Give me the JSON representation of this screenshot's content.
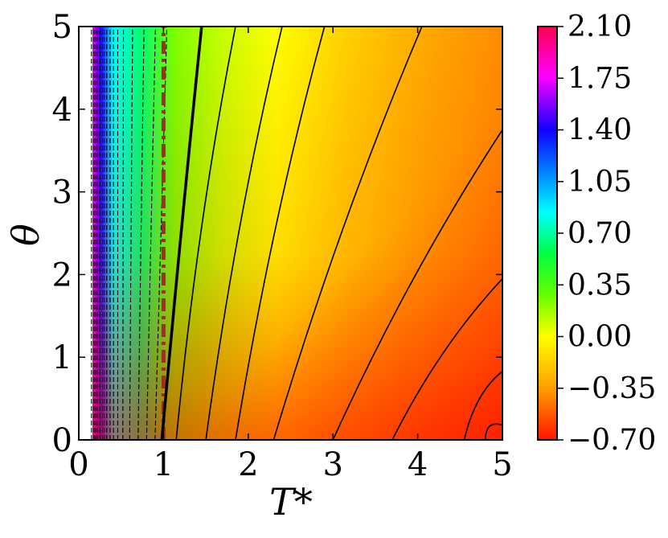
{
  "chart_data": {
    "type": "heatmap",
    "title": "",
    "xlabel": "T*",
    "ylabel": "θ",
    "xlim": [
      0,
      5
    ],
    "ylim": [
      0,
      5
    ],
    "x_ticks": [
      "0",
      "1",
      "2",
      "3",
      "4",
      "5"
    ],
    "y_ticks": [
      "0",
      "1",
      "2",
      "3",
      "4",
      "5"
    ],
    "grid": false,
    "colorbar": {
      "range": [
        -0.7,
        2.1
      ],
      "ticks": [
        "2.10",
        "1.75",
        "1.40",
        "1.05",
        "0.70",
        "0.35",
        "0.00",
        "−0.35",
        "−0.70"
      ],
      "tick_values": [
        2.1,
        1.75,
        1.4,
        1.05,
        0.7,
        0.35,
        0.0,
        -0.35,
        -0.7
      ],
      "colors": [
        "#ff0000",
        "#ff8000",
        "#ffff00",
        "#80ff00",
        "#00ff00",
        "#00ffff",
        "#0000ff",
        "#ff00ff",
        "#ff0040"
      ]
    },
    "zero_contour_x_at_theta": {
      "theta": [
        0,
        5
      ],
      "T": [
        0.98,
        1.45
      ]
    },
    "positive_contours_x_at_theta0": [
      0.15,
      0.18,
      0.2,
      0.22,
      0.25,
      0.28,
      0.3,
      0.33,
      0.37,
      0.41,
      0.46,
      0.52,
      0.6,
      0.7,
      0.8,
      0.9
    ],
    "negative_contours": [
      {
        "points": [
          [
            1.15,
            0
          ],
          [
            1.85,
            5
          ]
        ]
      },
      {
        "points": [
          [
            1.5,
            0
          ],
          [
            2.4,
            5
          ]
        ]
      },
      {
        "points": [
          [
            1.85,
            0
          ],
          [
            2.9,
            5
          ]
        ]
      },
      {
        "points": [
          [
            2.3,
            0
          ],
          [
            4.05,
            5
          ]
        ]
      },
      {
        "points": [
          [
            3.0,
            0
          ],
          [
            5.0,
            3.75
          ]
        ]
      },
      {
        "points": [
          [
            3.7,
            0
          ],
          [
            5.0,
            1.95
          ]
        ]
      },
      {
        "points": [
          [
            4.55,
            0
          ],
          [
            5.0,
            0.83
          ]
        ]
      },
      {
        "points": [
          [
            4.8,
            0
          ],
          [
            5.0,
            0.18
          ]
        ]
      }
    ],
    "reference_line": {
      "x": 1.0,
      "style": "dash-dot",
      "color": "#a52a2a"
    }
  }
}
